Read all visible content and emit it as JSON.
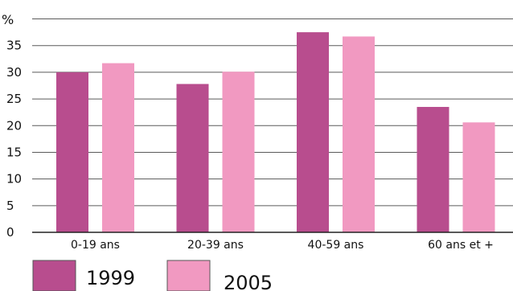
{
  "chart_data": {
    "type": "bar",
    "unit_label": "%",
    "categories": [
      "0-19 ans",
      "20-39 ans",
      "40-59 ans",
      "60 ans et +"
    ],
    "series": [
      {
        "name": "1999",
        "values": [
          30,
          27.8,
          37.5,
          23.5
        ],
        "color": "#b84d8e"
      },
      {
        "name": "2005",
        "values": [
          31.7,
          30.1,
          36.7,
          20.6
        ],
        "color": "#f199c1"
      }
    ],
    "yticks": [
      0,
      5,
      10,
      15,
      20,
      25,
      30,
      35
    ],
    "ylim": [
      0,
      40
    ],
    "grid": true,
    "legend": "bottom-left"
  }
}
